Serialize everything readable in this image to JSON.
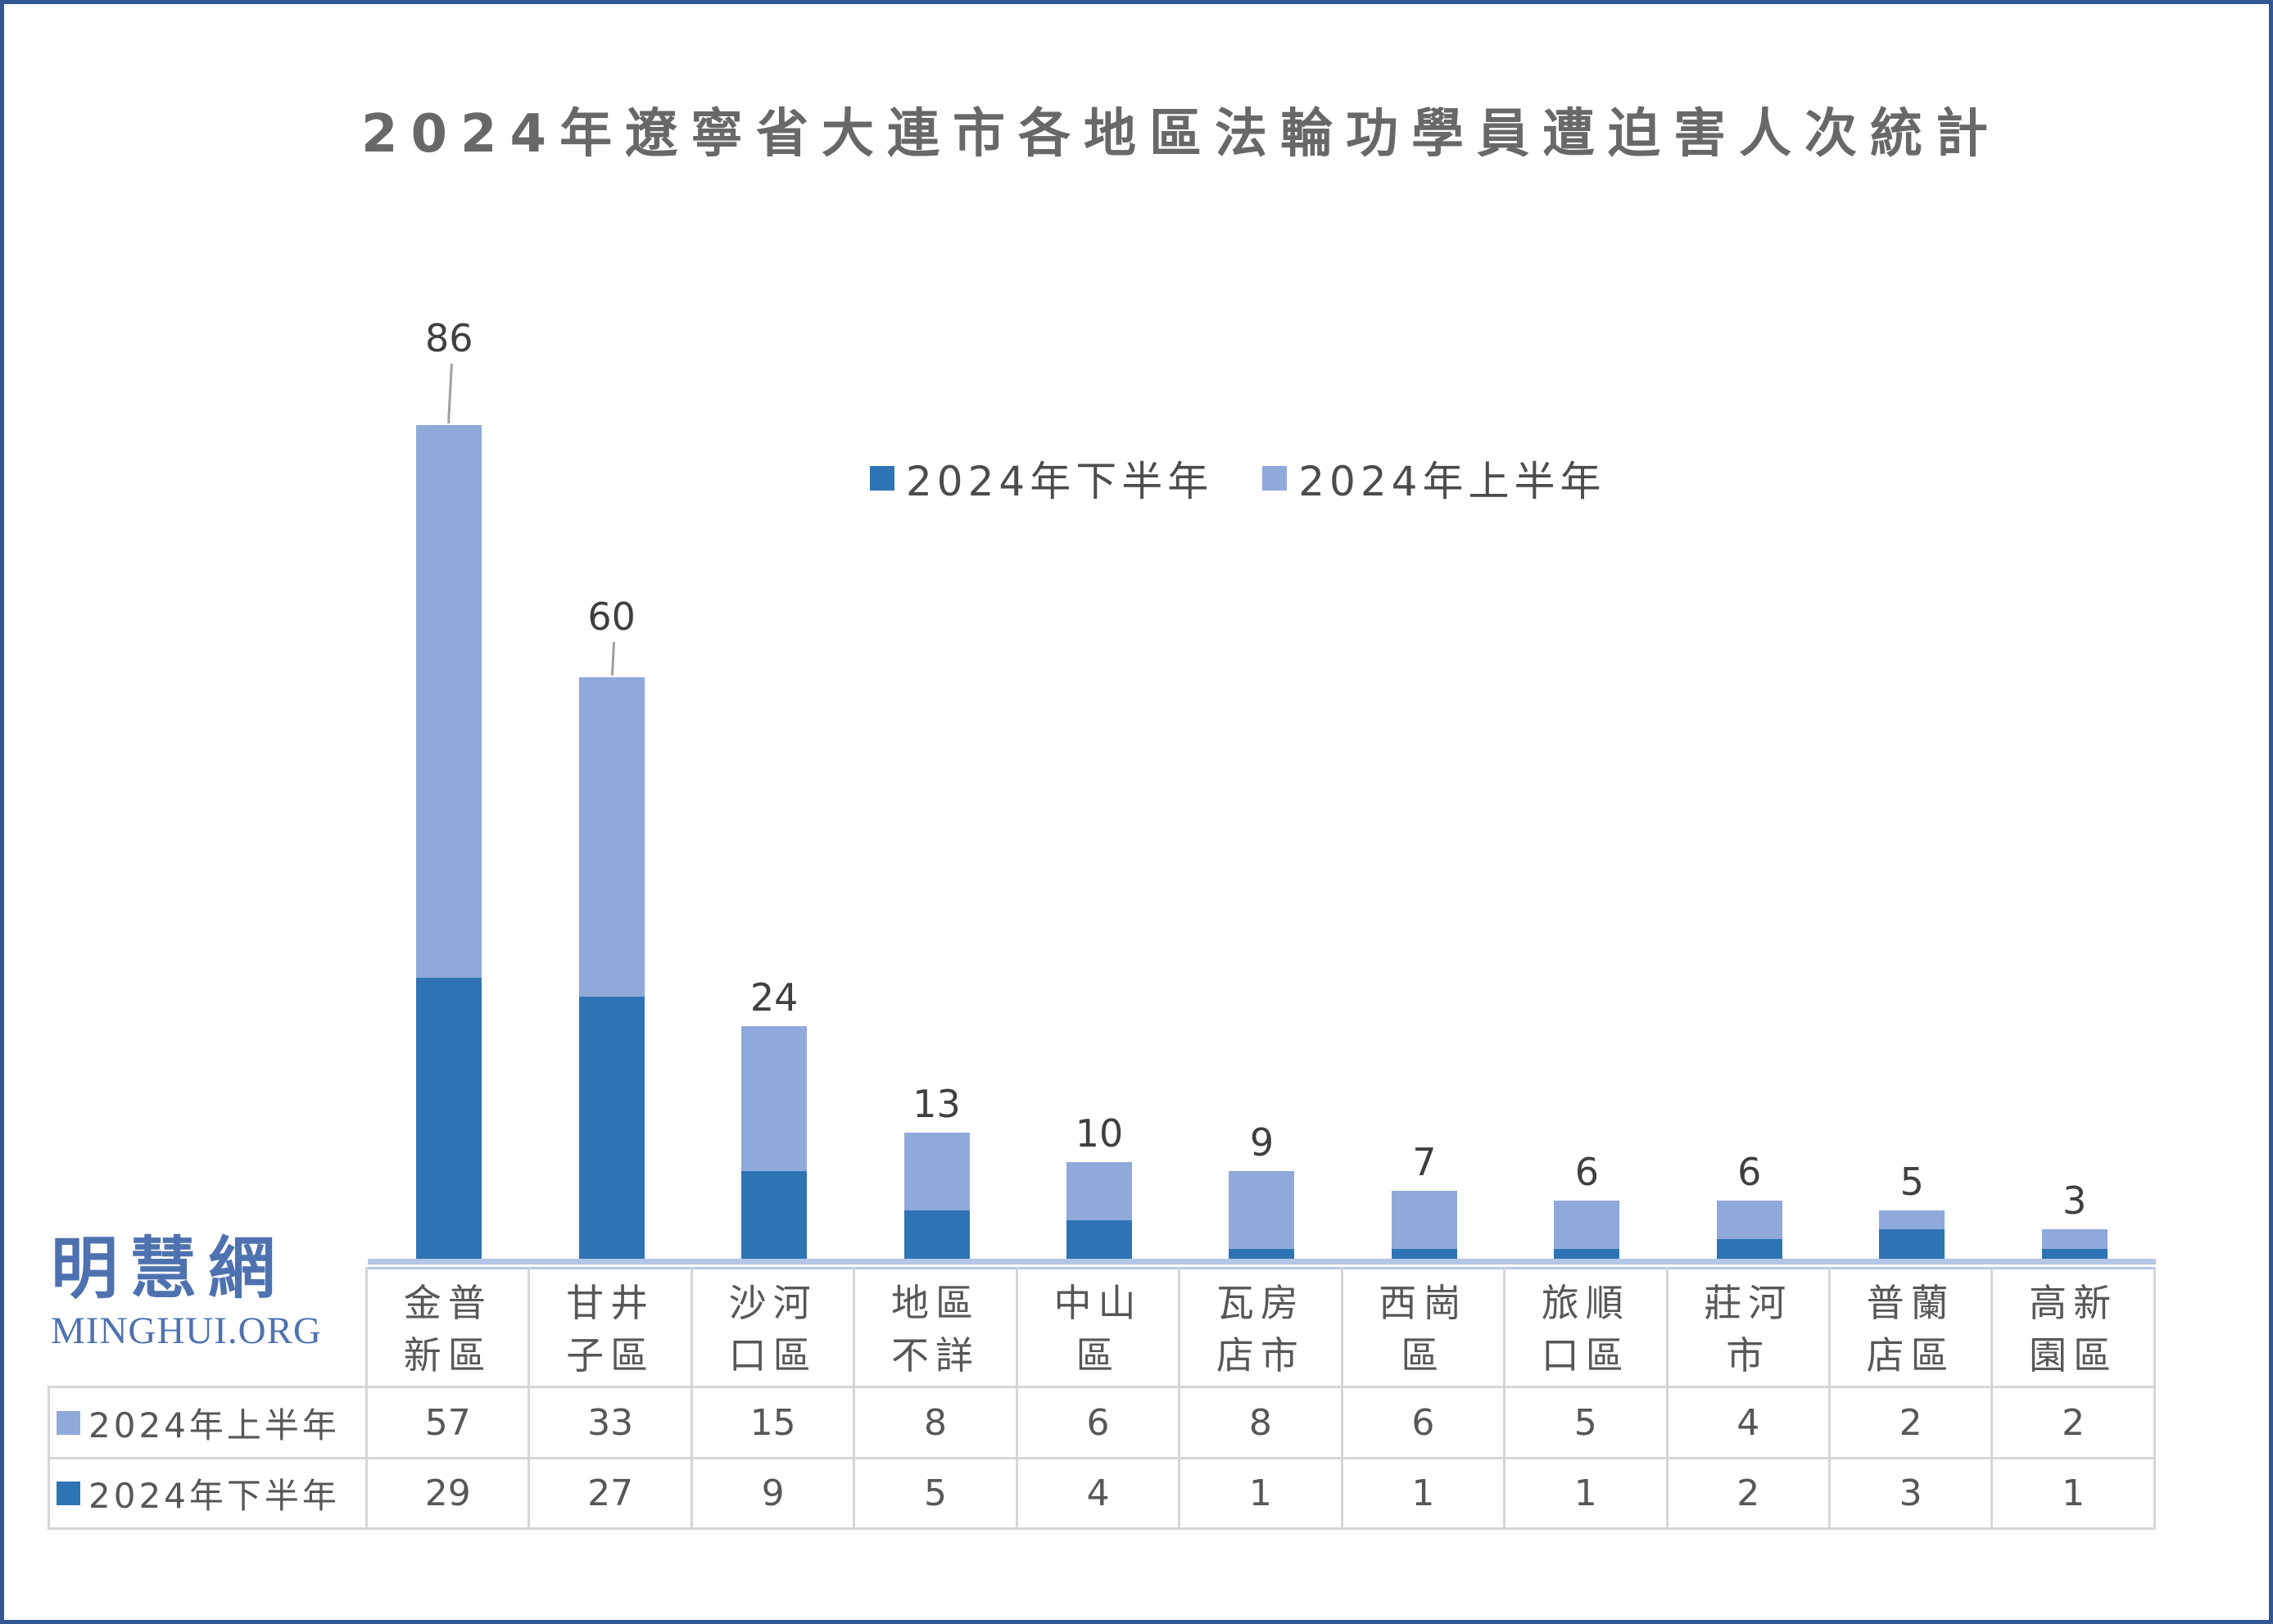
{
  "page": {
    "title": "2024年遼寧省大連市各地區法輪功學員遭迫害人次統計"
  },
  "legend": {
    "items": [
      {
        "label": "2024年下半年",
        "color": "#2E74B5"
      },
      {
        "label": "2024年上半年",
        "color": "#8FA9DB"
      }
    ]
  },
  "logo": {
    "cjk": "明慧網",
    "latin": "MINGHUI.ORG"
  },
  "colors": {
    "second_half_bar": "#2E74B5",
    "first_half_bar": "#8FA9DB",
    "axis_line": "#B4C6E7",
    "table_border": "#D6D6D6",
    "outer_border": "#325694",
    "text": "#575757"
  },
  "chart_data": {
    "type": "bar",
    "stacked": true,
    "title": "2024年遼寧省大連市各地區法輪功學員遭迫害人次統計",
    "xlabel": "",
    "ylabel": "",
    "ylim": [
      0,
      86
    ],
    "grid": false,
    "legend_position": "top-center",
    "categories": [
      "金普新區",
      "甘井子區",
      "沙河口區",
      "地區不詳",
      "中山區",
      "瓦房店市",
      "西崗區",
      "旅順口區",
      "莊河市",
      "普蘭店區",
      "高新園區"
    ],
    "categories_display": [
      [
        "金普",
        "新區"
      ],
      [
        "甘井",
        "子區"
      ],
      [
        "沙河",
        "口區"
      ],
      [
        "地區",
        "不詳"
      ],
      [
        "中山",
        "區"
      ],
      [
        "瓦房",
        "店市"
      ],
      [
        "西崗",
        "區"
      ],
      [
        "旅順",
        "口區"
      ],
      [
        "莊河",
        "市"
      ],
      [
        "普蘭",
        "店區"
      ],
      [
        "高新",
        "園區"
      ]
    ],
    "series": [
      {
        "name": "2024年上半年",
        "color": "#8FA9DB",
        "stack_position": "top",
        "values": [
          57,
          33,
          15,
          8,
          6,
          8,
          6,
          5,
          4,
          2,
          2
        ]
      },
      {
        "name": "2024年下半年",
        "color": "#2E74B5",
        "stack_position": "bottom",
        "values": [
          29,
          27,
          9,
          5,
          4,
          1,
          1,
          1,
          2,
          3,
          1
        ]
      }
    ],
    "totals": [
      86,
      60,
      24,
      13,
      10,
      9,
      7,
      6,
      6,
      5,
      3
    ]
  }
}
